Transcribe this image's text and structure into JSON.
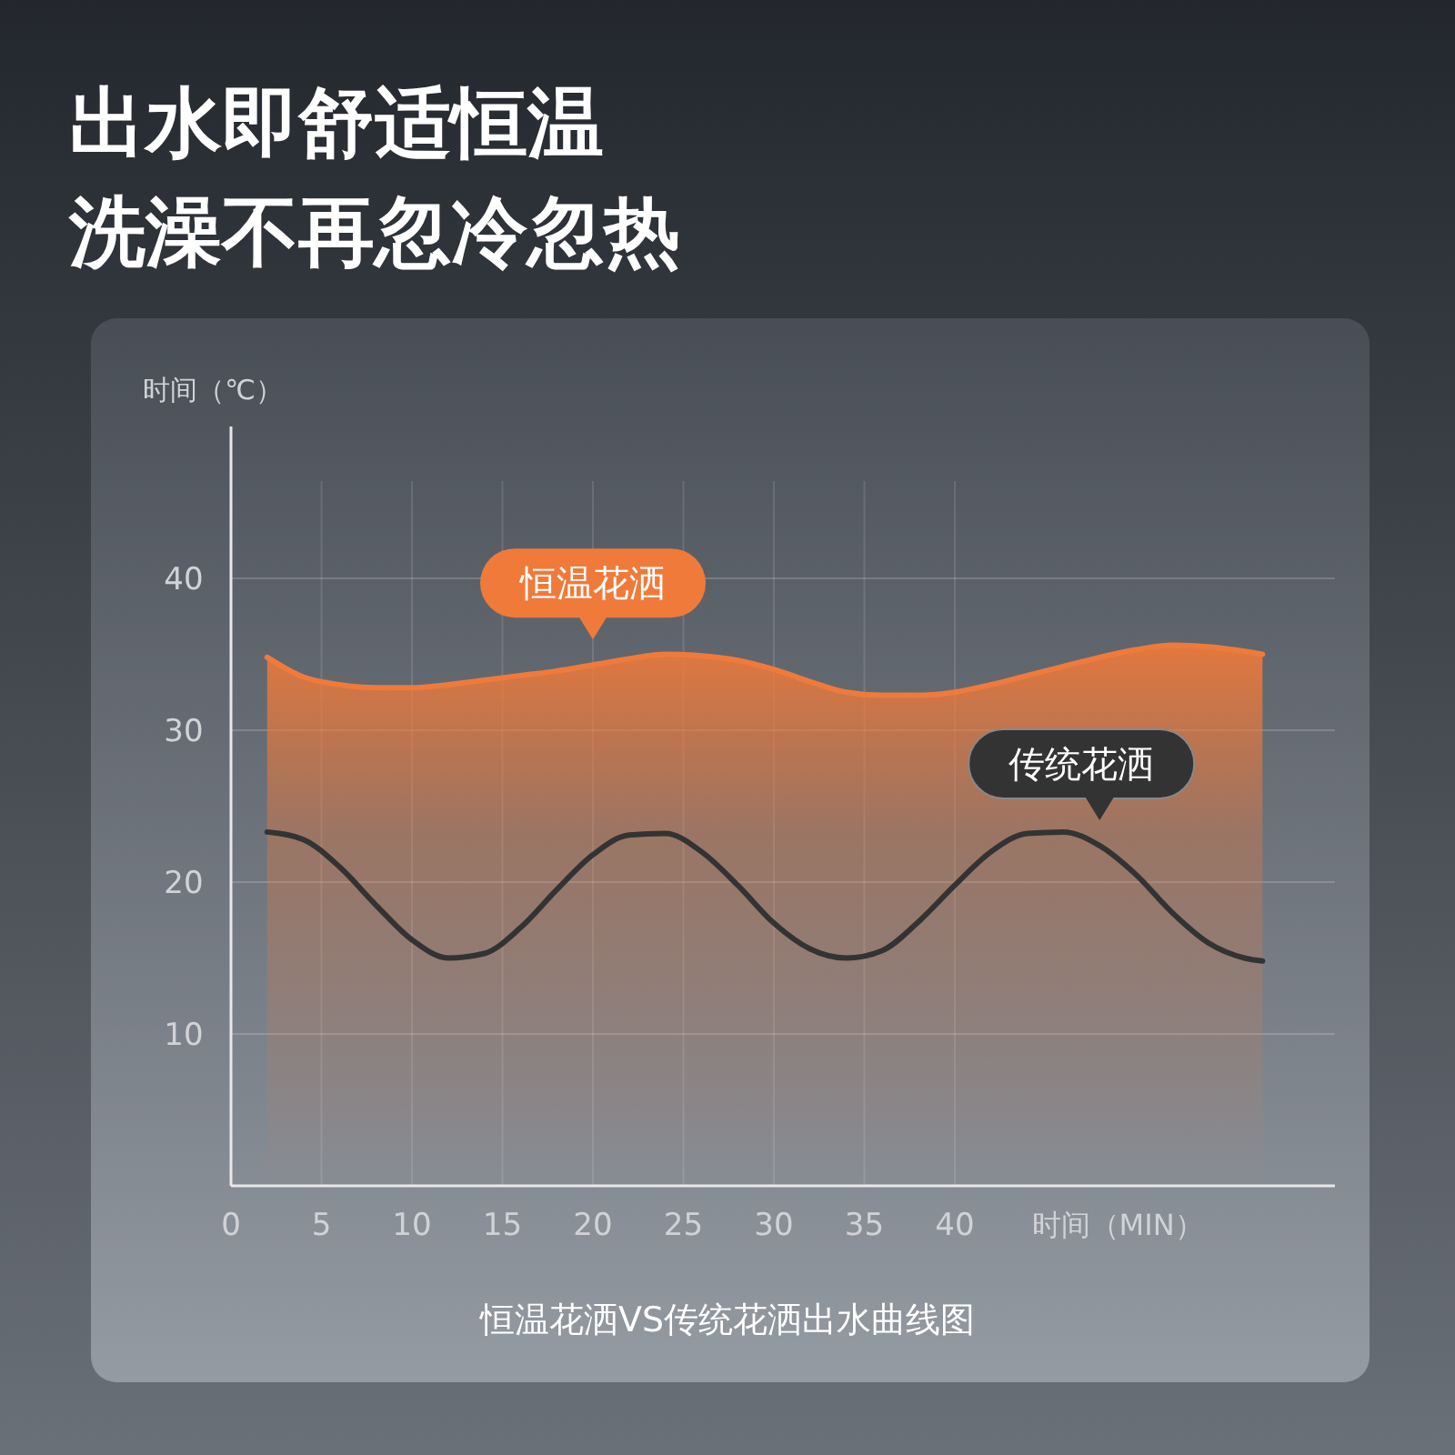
{
  "chart_data": {
    "type": "line",
    "title": "出水即舒适恒温",
    "subtitle": "洗澡不再忽冷忽热",
    "xlabel": "时间（MIN）",
    "ylabel": "时间（℃）",
    "annotations": [
      "恒温花洒VS传统花洒出水曲线图"
    ],
    "xlim": [
      0,
      61
    ],
    "xticks": [
      0,
      5,
      10,
      15,
      20,
      25,
      30,
      35,
      40
    ],
    "ylim": [
      0,
      50
    ],
    "yticks": [
      10,
      20,
      30,
      40
    ],
    "grid": true,
    "x": [
      2,
      4,
      6,
      8,
      10,
      12,
      14,
      16,
      18,
      20,
      22,
      24,
      26,
      28,
      30,
      32,
      34,
      36,
      38,
      40,
      42,
      44,
      46,
      48,
      50,
      52,
      54,
      56,
      57
    ],
    "series": [
      {
        "name": "恒温花洒",
        "type": "area",
        "color": "#f07a3a",
        "values": [
          34.8,
          33.5,
          33.0,
          32.8,
          32.8,
          33.0,
          33.3,
          33.6,
          33.9,
          34.3,
          34.7,
          35.0,
          34.9,
          34.6,
          34.0,
          33.2,
          32.5,
          32.3,
          32.3,
          32.5,
          33.0,
          33.6,
          34.2,
          34.8,
          35.3,
          35.6,
          35.5,
          35.2,
          35.0
        ]
      },
      {
        "name": "传统花洒",
        "type": "line",
        "color": "#333333",
        "values": [
          23.3,
          22.8,
          21.0,
          18.5,
          16.2,
          15.0,
          15.3,
          17.0,
          19.5,
          21.8,
          23.1,
          23.2,
          22.0,
          19.8,
          17.3,
          15.6,
          15.0,
          15.5,
          17.4,
          19.8,
          22.0,
          23.2,
          23.3,
          22.4,
          20.5,
          18.0,
          16.0,
          15.0,
          14.8
        ]
      }
    ]
  }
}
